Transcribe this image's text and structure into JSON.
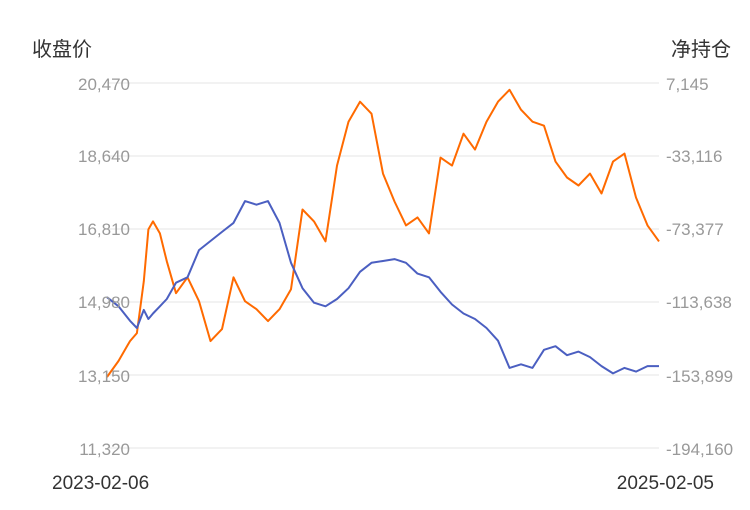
{
  "chart_data": {
    "type": "line",
    "left_axis_title": "收盘价",
    "right_axis_title": "净持仓",
    "left_ticks": [
      "20,470",
      "18,640",
      "16,810",
      "14,980",
      "13,150",
      "11,320"
    ],
    "right_ticks": [
      "7,145",
      "-33,116",
      "-73,377",
      "-113,638",
      "-153,899",
      "-194,160"
    ],
    "left_ylim": [
      11320,
      20470
    ],
    "right_ylim": [
      -194160,
      7145
    ],
    "x_start_label": "2023-02-06",
    "x_end_label": "2025-02-05",
    "grid": true,
    "series": [
      {
        "key": "close",
        "axis": "left",
        "color": "#ff6a00",
        "x": [
          0,
          0.5,
          1,
          1.3,
          1.6,
          1.8,
          2,
          2.3,
          2.6,
          3,
          3.5,
          4,
          4.5,
          5,
          5.5,
          6,
          6.5,
          7,
          7.5,
          8,
          8.5,
          9,
          9.5,
          10,
          10.5,
          11,
          11.5,
          12,
          12.5,
          13,
          13.5,
          14,
          14.5,
          15,
          15.5,
          16,
          16.5,
          17,
          17.5,
          18,
          18.5,
          19,
          19.5,
          20,
          20.5,
          21,
          21.5,
          22,
          22.5,
          23,
          23.5,
          24
        ],
        "values": [
          13100,
          13500,
          14000,
          14200,
          15500,
          16800,
          17000,
          16700,
          16000,
          15200,
          15600,
          15000,
          14000,
          14300,
          15600,
          15000,
          14800,
          14500,
          14800,
          15300,
          17300,
          17000,
          16500,
          18400,
          19500,
          20000,
          19700,
          18200,
          17500,
          16900,
          17100,
          16700,
          18600,
          18400,
          19200,
          18800,
          19500,
          20000,
          20300,
          19800,
          19500,
          19400,
          18500,
          18100,
          17900,
          18200,
          17700,
          18500,
          18700,
          17600,
          16900,
          16500
        ]
      },
      {
        "key": "net_position",
        "axis": "right",
        "color": "#4b5fc1",
        "x": [
          0,
          0.5,
          1,
          1.3,
          1.6,
          1.8,
          2,
          2.3,
          2.6,
          3,
          3.5,
          4,
          4.5,
          5,
          5.5,
          6,
          6.5,
          7,
          7.5,
          8,
          8.5,
          9,
          9.5,
          10,
          10.5,
          11,
          11.5,
          12,
          12.5,
          13,
          13.5,
          14,
          14.5,
          15,
          15.5,
          16,
          16.5,
          17,
          17.5,
          18,
          18.5,
          19,
          19.5,
          20,
          20.5,
          21,
          21.5,
          22,
          22.5,
          23,
          23.5,
          24
        ],
        "values": [
          -111000,
          -116000,
          -124000,
          -128000,
          -118000,
          -123000,
          -120000,
          -116000,
          -112000,
          -103000,
          -100000,
          -85000,
          -80000,
          -75000,
          -70000,
          -58000,
          -60000,
          -58000,
          -70000,
          -92000,
          -106000,
          -114000,
          -116000,
          -112000,
          -106000,
          -97000,
          -92000,
          -91000,
          -90000,
          -92000,
          -98000,
          -100000,
          -108000,
          -115000,
          -120000,
          -123000,
          -128000,
          -135000,
          -150000,
          -148000,
          -150000,
          -140000,
          -138000,
          -143000,
          -141000,
          -144000,
          -149000,
          -153000,
          -150000,
          -152000,
          -149000,
          -149000
        ]
      }
    ]
  }
}
